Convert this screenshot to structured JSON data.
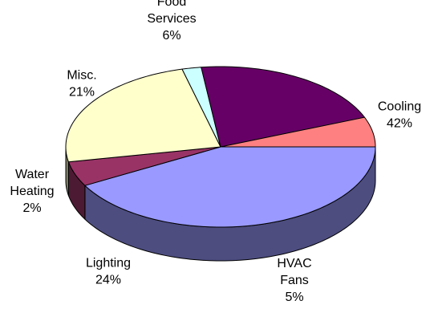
{
  "chart_data": {
    "type": "pie",
    "three_d": true,
    "start_angle_deg": 0,
    "direction": "clockwise",
    "legend": "none",
    "slices": [
      {
        "key": "cooling",
        "label_lines": [
          "Cooling"
        ],
        "value": 42,
        "display": "42%",
        "color": "#9999ff"
      },
      {
        "key": "hvac-fans",
        "label_lines": [
          "HVAC",
          "Fans"
        ],
        "value": 5,
        "display": "5%",
        "color": "#993366"
      },
      {
        "key": "lighting",
        "label_lines": [
          "Lighting"
        ],
        "value": 24,
        "display": "24%",
        "color": "#ffffcc"
      },
      {
        "key": "water-heating",
        "label_lines": [
          "Water",
          "Heating"
        ],
        "value": 2,
        "display": "2%",
        "color": "#ccffff"
      },
      {
        "key": "misc",
        "label_lines": [
          "Misc."
        ],
        "value": 21,
        "display": "21%",
        "color": "#660066"
      },
      {
        "key": "food-services",
        "label_lines": [
          "Food",
          "Services"
        ],
        "value": 6,
        "display": "6%",
        "color": "#ff8080"
      }
    ]
  }
}
